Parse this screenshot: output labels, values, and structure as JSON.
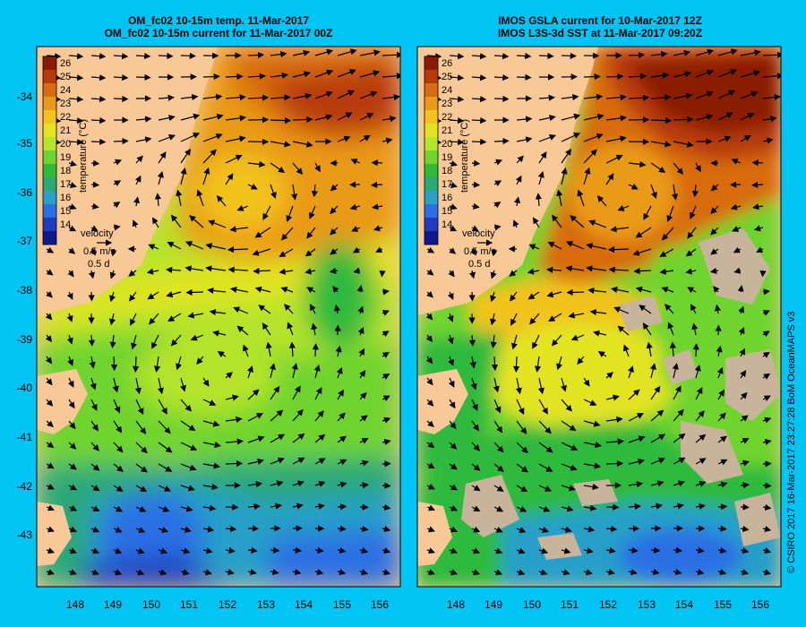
{
  "panels": [
    {
      "title_line1": "OM_fc02 10-15m temp. 11-Mar-2017",
      "title_line2": "OM_fc02 10-15m current for 11-Mar-2017 00Z"
    },
    {
      "title_line1": "IMOS GSLA current for 10-Mar-2017 12Z",
      "title_line2": "IMOS L3S-3d SST at 11-Mar-2017 09:20Z"
    }
  ],
  "colorbar": {
    "values": [
      "26",
      "25",
      "24",
      "23",
      "22",
      "21",
      "20",
      "19",
      "18",
      "17",
      "16",
      "15",
      "14"
    ],
    "label": "temperature (°C)",
    "colors": [
      "#8a1a06",
      "#b83a0b",
      "#d86c10",
      "#e99a16",
      "#f2c21e",
      "#e2e423",
      "#b4e42c",
      "#6fd42f",
      "#2fba3c",
      "#2aa878",
      "#28a0c8",
      "#2a70e4",
      "#1f3cc0",
      "#0e1990"
    ]
  },
  "velocity_legend": {
    "label": "velocity",
    "speed": "0.5 m/s",
    "duration": "0.5 d"
  },
  "latitudes": [
    "-34",
    "-35",
    "-36",
    "-37",
    "-38",
    "-39",
    "-40",
    "-41",
    "-42",
    "-43"
  ],
  "longitudes": [
    "148",
    "149",
    "150",
    "151",
    "152",
    "153",
    "154",
    "155",
    "156"
  ],
  "credit": "© CSIRO 2017   16-Mar-2017 23:27:28 BoM OceanMAPS v3",
  "colors": {
    "background": "#00c4f4",
    "land": "#f8c896",
    "no_data": "#c8b49a",
    "vector": "#000000"
  }
}
